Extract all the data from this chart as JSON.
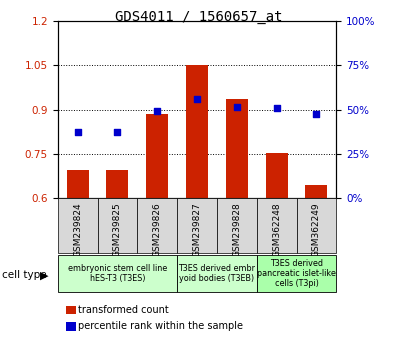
{
  "title": "GDS4011 / 1560657_at",
  "categories": [
    "GSM239824",
    "GSM239825",
    "GSM239826",
    "GSM239827",
    "GSM239828",
    "GSM362248",
    "GSM362249"
  ],
  "bar_values": [
    0.695,
    0.695,
    0.885,
    1.05,
    0.935,
    0.755,
    0.645
  ],
  "dot_values": [
    0.825,
    0.826,
    0.896,
    0.935,
    0.91,
    0.905,
    0.885
  ],
  "ylim": [
    0.6,
    1.2
  ],
  "yticks_left": [
    0.6,
    0.75,
    0.9,
    1.05,
    1.2
  ],
  "yticks_right": [
    0,
    25,
    50,
    75,
    100
  ],
  "bar_color": "#cc2200",
  "dot_color": "#0000cc",
  "bar_bottom": 0.6,
  "cell_type_groups": [
    {
      "label": "embryonic stem cell line\nhES-T3 (T3ES)",
      "start": 0,
      "end": 3,
      "color": "#ccffcc"
    },
    {
      "label": "T3ES derived embr\nyoid bodies (T3EB)",
      "start": 3,
      "end": 5,
      "color": "#ccffcc"
    },
    {
      "label": "T3ES derived\npancreatic islet-like\ncells (T3pi)",
      "start": 5,
      "end": 7,
      "color": "#aaffaa"
    }
  ],
  "legend_bar_label": "transformed count",
  "legend_dot_label": "percentile rank within the sample",
  "cell_type_label": "cell type",
  "background_color": "#ffffff",
  "title_fontsize": 10,
  "axis_tick_fontsize": 7.5,
  "label_fontsize": 7.5
}
